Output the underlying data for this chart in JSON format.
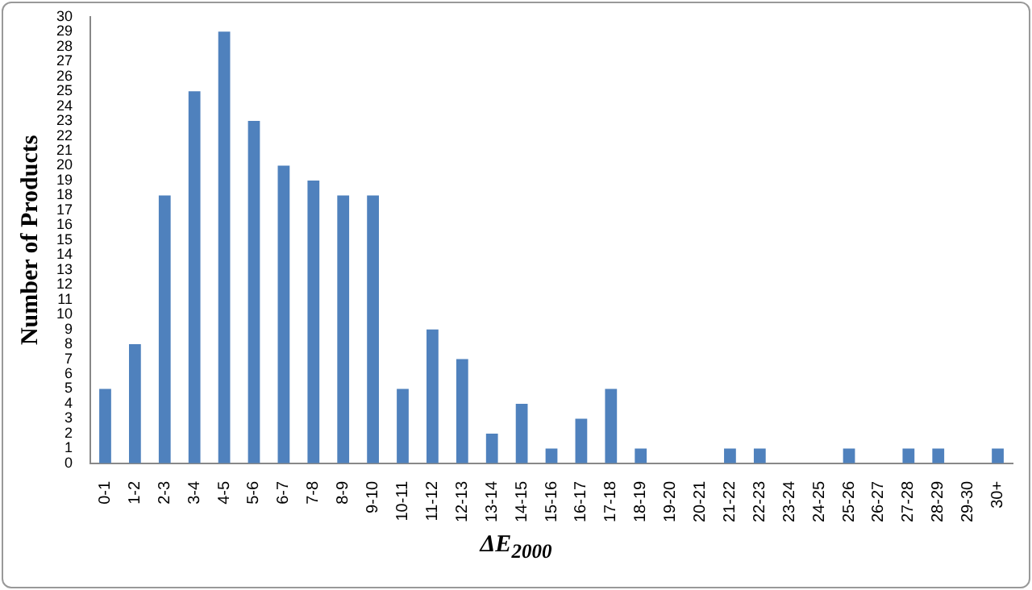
{
  "chart_data": {
    "type": "bar",
    "xlabel": "ΔE$_{2000}$",
    "ylabel": "Number of Products",
    "categories": [
      "0-1",
      "1-2",
      "2-3",
      "3-4",
      "4-5",
      "5-6",
      "6-7",
      "7-8",
      "8-9",
      "9-10",
      "10-11",
      "11-12",
      "12-13",
      "13-14",
      "14-15",
      "15-16",
      "16-17",
      "17-18",
      "18-19",
      "19-20",
      "20-21",
      "21-22",
      "22-23",
      "23-24",
      "24-25",
      "25-26",
      "26-27",
      "27-28",
      "28-29",
      "29-30",
      "30+"
    ],
    "values": [
      5,
      8,
      18,
      25,
      29,
      23,
      20,
      19,
      18,
      18,
      5,
      9,
      7,
      2,
      4,
      1,
      3,
      5,
      1,
      0,
      0,
      1,
      1,
      0,
      0,
      1,
      0,
      1,
      1,
      0,
      1
    ],
    "color": "#4f81bd",
    "ylim": [
      0,
      30
    ],
    "yticks": [
      0,
      1,
      2,
      3,
      4,
      5,
      6,
      7,
      8,
      9,
      10,
      11,
      12,
      13,
      14,
      15,
      16,
      17,
      18,
      19,
      20,
      21,
      22,
      23,
      24,
      25,
      26,
      27,
      28,
      29,
      30
    ],
    "grid": false,
    "legend": false
  }
}
